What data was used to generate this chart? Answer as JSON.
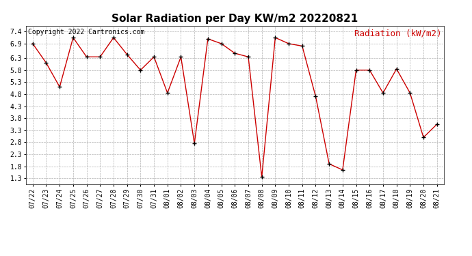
{
  "title": "Solar Radiation per Day KW/m2 20220821",
  "copyright_text": "Copyright 2022 Cartronics.com",
  "legend_label": "Radiation (kW/m2)",
  "dates": [
    "07/22",
    "07/23",
    "07/24",
    "07/25",
    "07/26",
    "07/27",
    "07/28",
    "07/29",
    "07/30",
    "07/31",
    "08/01",
    "08/02",
    "08/03",
    "08/04",
    "08/05",
    "08/06",
    "08/07",
    "08/08",
    "08/09",
    "08/10",
    "08/11",
    "08/12",
    "08/13",
    "08/14",
    "08/15",
    "08/16",
    "08/17",
    "08/18",
    "08/19",
    "08/20",
    "08/21"
  ],
  "values": [
    6.9,
    6.1,
    5.1,
    7.15,
    6.35,
    6.35,
    7.15,
    6.45,
    5.8,
    6.35,
    4.85,
    6.35,
    2.75,
    7.1,
    6.9,
    6.5,
    6.35,
    1.35,
    7.15,
    6.9,
    6.8,
    4.7,
    1.9,
    1.65,
    5.8,
    5.8,
    4.85,
    5.85,
    4.85,
    3.0,
    3.55
  ],
  "ylim_min": 1.05,
  "ylim_max": 7.65,
  "yticks": [
    1.3,
    1.8,
    2.3,
    2.8,
    3.3,
    3.8,
    4.3,
    4.8,
    5.3,
    5.8,
    6.3,
    6.9,
    7.4
  ],
  "line_color": "#cc0000",
  "marker": "+",
  "marker_color": "#000000",
  "bg_color": "#ffffff",
  "grid_color": "#b0b0b0",
  "title_fontsize": 11,
  "tick_fontsize": 7,
  "copyright_fontsize": 7,
  "legend_fontsize": 9
}
